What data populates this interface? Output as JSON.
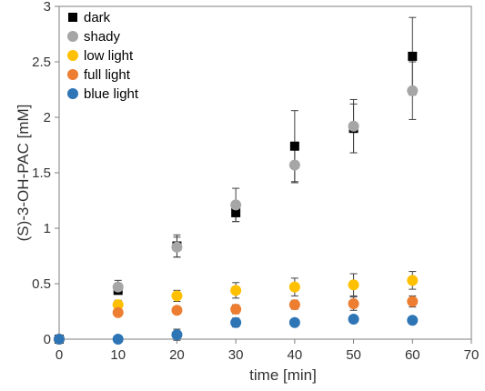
{
  "chart_data": {
    "type": "scatter",
    "xlabel": "time   [min]",
    "ylabel": "(S)-3-OH-PAC  [mM]",
    "xlim": [
      0,
      70
    ],
    "ylim": [
      0,
      3
    ],
    "xticks": [
      "0",
      "10",
      "20",
      "30",
      "40",
      "50",
      "60",
      "70"
    ],
    "yticks": [
      "0",
      "0.5",
      "1",
      "1.5",
      "2",
      "2.5",
      "3"
    ],
    "legend_position": "top-left",
    "grid": false,
    "series": [
      {
        "name": "dark",
        "marker": "square",
        "color": "#000000",
        "x": [
          0,
          10,
          20,
          30,
          40,
          50,
          60
        ],
        "y": [
          0,
          0.44,
          0.84,
          1.14,
          1.74,
          1.9,
          2.55
        ],
        "err": [
          0,
          0.03,
          0.1,
          0.08,
          0.32,
          0.22,
          0.35
        ]
      },
      {
        "name": "shady",
        "marker": "circle",
        "color": "#a6a6a6",
        "x": [
          0,
          10,
          20,
          30,
          40,
          50,
          60
        ],
        "y": [
          0,
          0.47,
          0.83,
          1.21,
          1.57,
          1.92,
          2.24
        ],
        "err": [
          0,
          0.06,
          0.09,
          0.15,
          0.16,
          0.24,
          0.26
        ]
      },
      {
        "name": "low light",
        "marker": "circle",
        "color": "#ffc000",
        "x": [
          0,
          10,
          20,
          30,
          40,
          50,
          60
        ],
        "y": [
          0,
          0.31,
          0.39,
          0.44,
          0.47,
          0.49,
          0.53
        ],
        "err": [
          0,
          0.04,
          0.05,
          0.07,
          0.08,
          0.1,
          0.08
        ]
      },
      {
        "name": "full light",
        "marker": "circle",
        "color": "#ed7d31",
        "x": [
          0,
          10,
          20,
          30,
          40,
          50,
          60
        ],
        "y": [
          0,
          0.24,
          0.26,
          0.27,
          0.31,
          0.32,
          0.34
        ],
        "err": [
          0,
          0.02,
          0.03,
          0.04,
          0.04,
          0.06,
          0.05
        ]
      },
      {
        "name": "blue light",
        "marker": "circle",
        "color": "#2e75b6",
        "x": [
          0,
          10,
          20,
          30,
          40,
          50,
          60
        ],
        "y": [
          0,
          0.0,
          0.04,
          0.15,
          0.15,
          0.18,
          0.17
        ],
        "err": [
          0,
          0.0,
          0.05,
          0.04,
          0.03,
          0.02,
          0.02
        ]
      }
    ]
  }
}
